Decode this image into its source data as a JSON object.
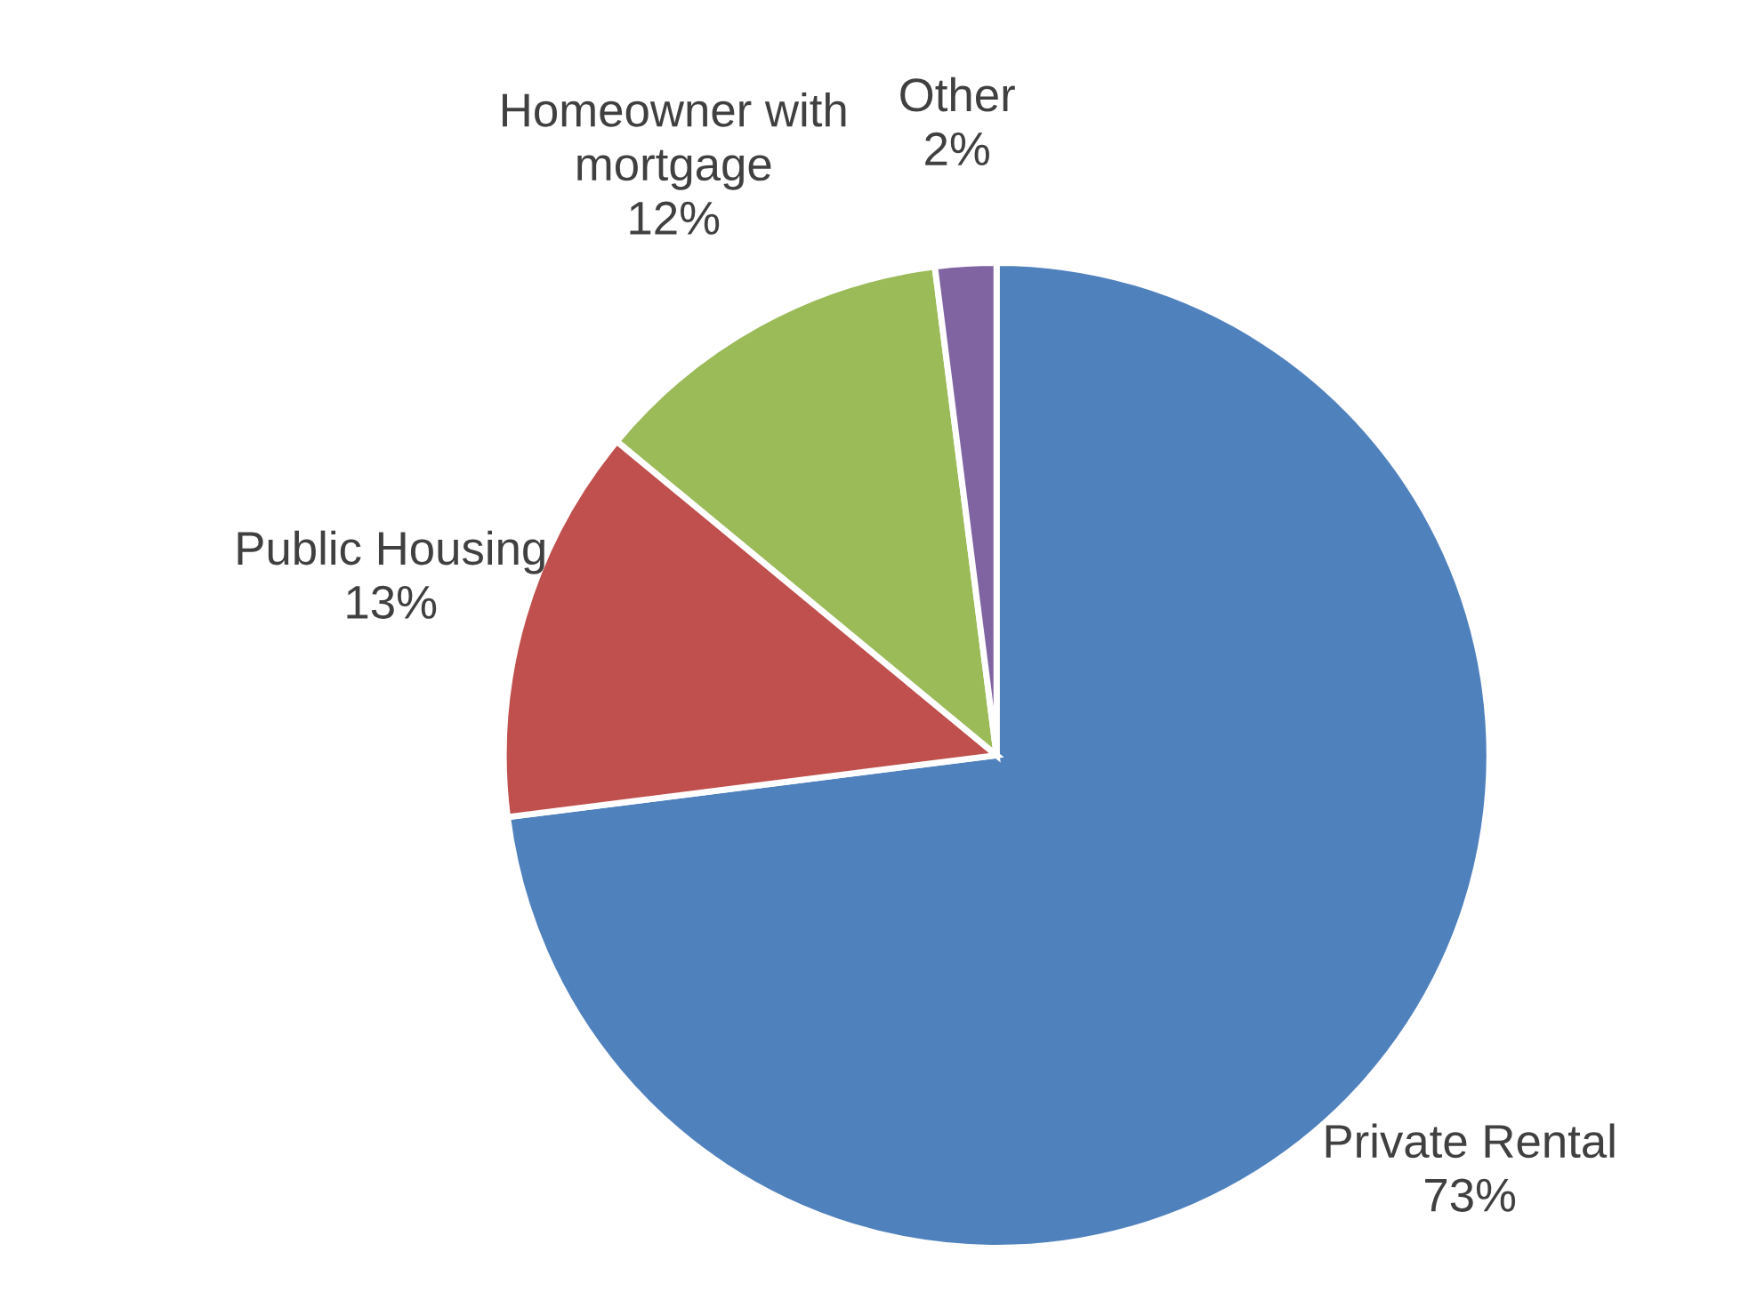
{
  "chart_data": {
    "type": "pie",
    "categories": [
      "Private Rental",
      "Public Housing",
      "Homeowner with\nmortgage",
      "Other"
    ],
    "values": [
      73,
      13,
      12,
      2
    ],
    "colors": [
      "#4f81bd",
      "#c0504d",
      "#9bbb59",
      "#8064a2"
    ],
    "value_labels": [
      "73%",
      "13%",
      "12%",
      "2%"
    ],
    "legend": false
  }
}
